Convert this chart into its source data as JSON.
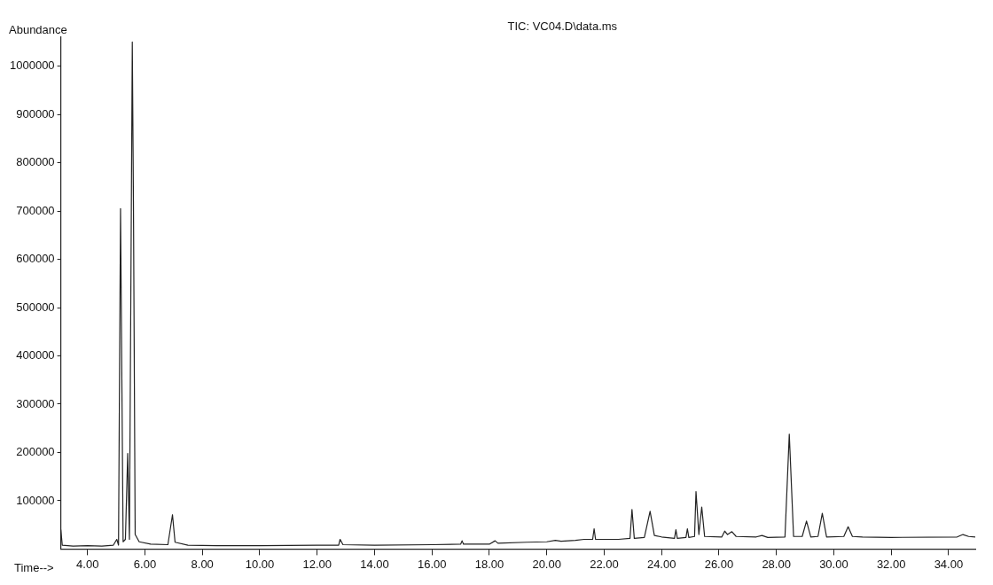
{
  "chart_data": {
    "type": "line",
    "title": "TIC: VC04.D\\data.ms",
    "xlabel": "Time-->",
    "ylabel": "Abundance",
    "xlim": [
      3.07,
      34.93
    ],
    "ylim": [
      0,
      1060000
    ],
    "xticks": [
      {
        "value": 4,
        "label": "4.00"
      },
      {
        "value": 6,
        "label": "6.00"
      },
      {
        "value": 8,
        "label": "8.00"
      },
      {
        "value": 10,
        "label": "10.00"
      },
      {
        "value": 12,
        "label": "12.00"
      },
      {
        "value": 14,
        "label": "14.00"
      },
      {
        "value": 16,
        "label": "16.00"
      },
      {
        "value": 18,
        "label": "18.00"
      },
      {
        "value": 20,
        "label": "20.00"
      },
      {
        "value": 22,
        "label": "22.00"
      },
      {
        "value": 24,
        "label": "24.00"
      },
      {
        "value": 26,
        "label": "26.00"
      },
      {
        "value": 28,
        "label": "28.00"
      },
      {
        "value": 30,
        "label": "30.00"
      },
      {
        "value": 32,
        "label": "32.00"
      },
      {
        "value": 34,
        "label": "34.00"
      }
    ],
    "yticks": [
      100000,
      200000,
      300000,
      400000,
      500000,
      600000,
      700000,
      800000,
      900000,
      1000000
    ],
    "grid": false,
    "legend": false,
    "marker": "none",
    "line_style": "solid",
    "series": [
      {
        "color": "#222222",
        "x": [
          3.07,
          3.12,
          3.5,
          4.0,
          4.5,
          4.9,
          5.02,
          5.08,
          5.15,
          5.24,
          5.32,
          5.4,
          5.46,
          5.56,
          5.6,
          5.66,
          5.8,
          6.2,
          6.8,
          6.96,
          7.05,
          7.5,
          8.5,
          10,
          12,
          12.75,
          12.8,
          12.9,
          14,
          16,
          17,
          17.05,
          17.1,
          18,
          18.2,
          18.3,
          19.3,
          20,
          20.3,
          20.5,
          21,
          21.3,
          21.6,
          21.65,
          21.7,
          22.5,
          22.9,
          22.97,
          23.05,
          23.4,
          23.6,
          23.75,
          24,
          24.45,
          24.5,
          24.55,
          24.85,
          24.9,
          24.95,
          25.15,
          25.2,
          25.3,
          25.4,
          25.5,
          26.1,
          26.2,
          26.3,
          26.45,
          26.6,
          27.3,
          27.5,
          27.7,
          28.3,
          28.45,
          28.6,
          28.9,
          29.05,
          29.2,
          29.45,
          29.6,
          29.75,
          30.35,
          30.5,
          30.65,
          31,
          32,
          34.3,
          34.5,
          34.7,
          34.93
        ],
        "values": [
          40000,
          8000,
          6000,
          7000,
          6000,
          8000,
          20000,
          8000,
          705000,
          15000,
          20000,
          198000,
          20000,
          1050000,
          720000,
          30000,
          15000,
          10000,
          9000,
          71000,
          14000,
          8000,
          7000,
          7000,
          8000,
          8000,
          20000,
          9000,
          8000,
          9000,
          10000,
          17000,
          10000,
          10000,
          17000,
          12000,
          14000,
          15000,
          18000,
          16000,
          18000,
          20000,
          20000,
          42000,
          20000,
          20000,
          22000,
          82000,
          22000,
          24000,
          78000,
          28000,
          25000,
          22000,
          40000,
          22000,
          24000,
          42000,
          24000,
          26000,
          119000,
          30000,
          87000,
          26000,
          25000,
          37000,
          30000,
          36000,
          26000,
          25000,
          28000,
          24000,
          25000,
          238000,
          26000,
          26000,
          58000,
          25000,
          26000,
          74000,
          25000,
          26000,
          46000,
          26000,
          25000,
          24000,
          25000,
          30000,
          26000,
          25000
        ]
      }
    ]
  }
}
